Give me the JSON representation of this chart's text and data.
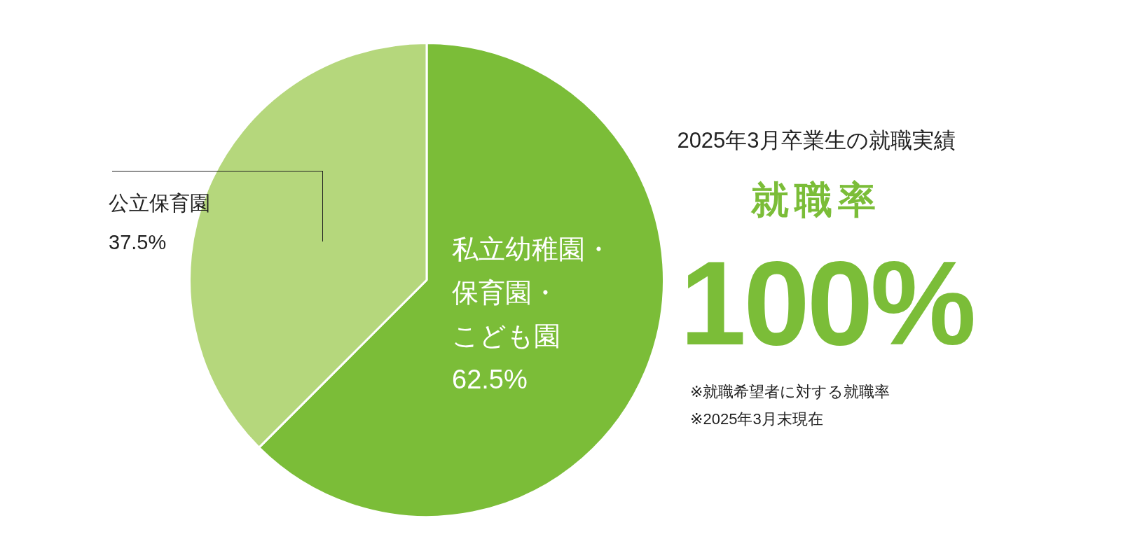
{
  "chart_data": {
    "type": "pie",
    "title": "2025年3月卒業生の就職実績",
    "categories": [
      "私立幼稚園・保育園・こども園",
      "公立保育園"
    ],
    "values": [
      62.5,
      37.5
    ],
    "value_labels": [
      "62.5%",
      "37.5%"
    ],
    "colors": [
      "#7bbd38",
      "#b5d77c"
    ],
    "legend": false,
    "annotations": [
      "就職率",
      "100%",
      "※就職希望者に対する就職率",
      "※2025年3月末現在"
    ]
  }
}
